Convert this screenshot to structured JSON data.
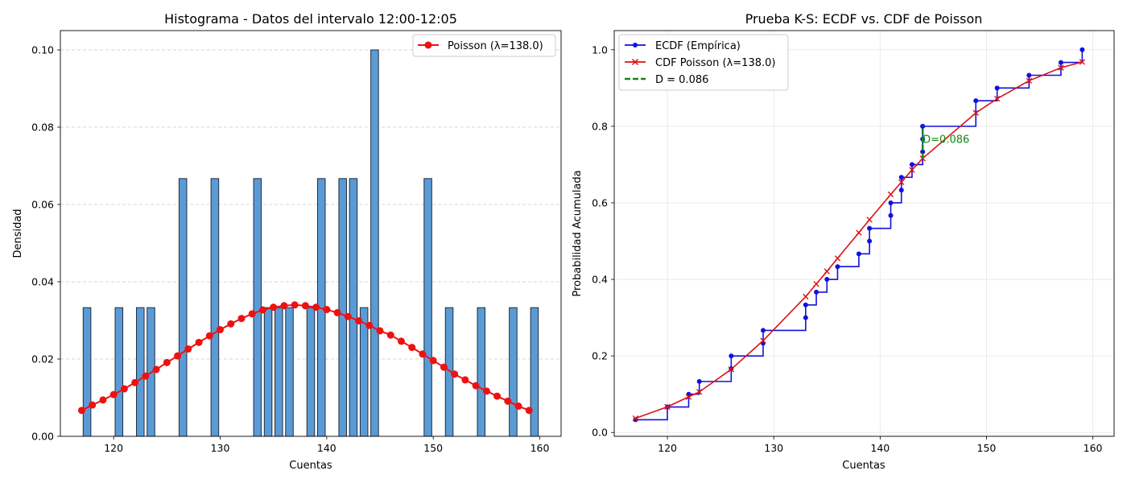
{
  "chart_data": [
    {
      "type": "bar",
      "title": "Histograma - Datos del intervalo 12:00-12:05",
      "xlabel": "Cuentas",
      "ylabel": "Densidad",
      "xlim": [
        115,
        162
      ],
      "ylim": [
        0,
        0.105
      ],
      "xticks": [
        "120",
        "130",
        "140",
        "150",
        "160"
      ],
      "yticks": [
        "0.00",
        "0.02",
        "0.04",
        "0.06",
        "0.08",
        "0.10"
      ],
      "grid": "y-dashed",
      "legend_position": "top-right",
      "colors": {
        "bars": "#5b9bd5",
        "bar_edge": "#1f2d3d",
        "poisson": "#ee1111"
      },
      "bars": {
        "x": [
          117,
          120,
          122,
          123,
          126,
          129,
          133,
          134,
          135,
          136,
          138,
          139,
          141,
          142,
          143,
          144,
          149,
          151,
          154,
          157,
          159
        ],
        "values": [
          0.0333,
          0.0333,
          0.0333,
          0.0333,
          0.0667,
          0.0667,
          0.0667,
          0.0333,
          0.0333,
          0.0333,
          0.0333,
          0.0667,
          0.0667,
          0.0667,
          0.0333,
          0.1,
          0.0667,
          0.0333,
          0.0333,
          0.0333,
          0.0333
        ]
      },
      "series": [
        {
          "name": "Poisson (λ=138.0)",
          "x": [
            117,
            118,
            119,
            120,
            121,
            122,
            123,
            124,
            125,
            126,
            127,
            128,
            129,
            130,
            131,
            132,
            133,
            134,
            135,
            136,
            137,
            138,
            139,
            140,
            141,
            142,
            143,
            144,
            145,
            146,
            147,
            148,
            149,
            150,
            151,
            152,
            153,
            154,
            155,
            156,
            157,
            158,
            159
          ],
          "values": [
            0.0067,
            0.0081,
            0.0094,
            0.0108,
            0.0123,
            0.0139,
            0.0156,
            0.0173,
            0.0191,
            0.0208,
            0.0226,
            0.0243,
            0.026,
            0.0276,
            0.0291,
            0.0305,
            0.0317,
            0.0327,
            0.0334,
            0.0338,
            0.034,
            0.0338,
            0.0334,
            0.0328,
            0.032,
            0.031,
            0.0299,
            0.0287,
            0.0273,
            0.0262,
            0.0246,
            0.023,
            0.0213,
            0.0196,
            0.0179,
            0.0161,
            0.0146,
            0.0131,
            0.0117,
            0.0104,
            0.0091,
            0.0078,
            0.0067
          ]
        }
      ]
    },
    {
      "type": "line",
      "title": "Prueba K-S: ECDF vs. CDF de Poisson",
      "xlabel": "Cuentas",
      "ylabel": "Probabilidad Acumulada",
      "xlim": [
        115,
        162
      ],
      "ylim": [
        -0.01,
        1.05
      ],
      "xticks": [
        "120",
        "130",
        "140",
        "150",
        "160"
      ],
      "yticks": [
        "0.0",
        "0.2",
        "0.4",
        "0.6",
        "0.8",
        "1.0"
      ],
      "grid": "both",
      "legend_position": "top-left",
      "colors": {
        "ecdf": "#1111dd",
        "cdf": "#dd1111",
        "d": "#118811"
      },
      "series": [
        {
          "name": "ECDF (Empírica)",
          "style": "step-post",
          "x": [
            117,
            120,
            122,
            123,
            126,
            126,
            129,
            129,
            133,
            133,
            134,
            135,
            136,
            138,
            139,
            139,
            141,
            141,
            142,
            142,
            143,
            144,
            144,
            144,
            144,
            149,
            151,
            154,
            157,
            159
          ],
          "values": [
            0.0333,
            0.0667,
            0.1,
            0.1333,
            0.1667,
            0.2,
            0.2333,
            0.2667,
            0.3,
            0.3333,
            0.3667,
            0.4,
            0.4333,
            0.4667,
            0.5,
            0.5333,
            0.5667,
            0.6,
            0.6333,
            0.6667,
            0.7,
            0.7333,
            0.7667,
            0.8,
            0.8,
            0.8667,
            0.9,
            0.9333,
            0.9667,
            1.0
          ]
        },
        {
          "name": "CDF Poisson (λ=138.0)",
          "x": [
            117,
            120,
            122,
            123,
            126,
            129,
            133,
            134,
            135,
            136,
            138,
            139,
            141,
            142,
            143,
            144,
            149,
            151,
            154,
            157,
            159
          ],
          "values": [
            0.037,
            0.067,
            0.093,
            0.106,
            0.165,
            0.24,
            0.355,
            0.388,
            0.421,
            0.455,
            0.522,
            0.556,
            0.622,
            0.654,
            0.686,
            0.716,
            0.835,
            0.872,
            0.919,
            0.953,
            0.968
          ]
        },
        {
          "name": "D = 0.086",
          "style": "dashed",
          "x": [
            144,
            144
          ],
          "values": [
            0.716,
            0.802
          ]
        }
      ],
      "annotations": [
        {
          "text": "D=0.086",
          "x": 144,
          "y": 0.766
        }
      ]
    }
  ]
}
